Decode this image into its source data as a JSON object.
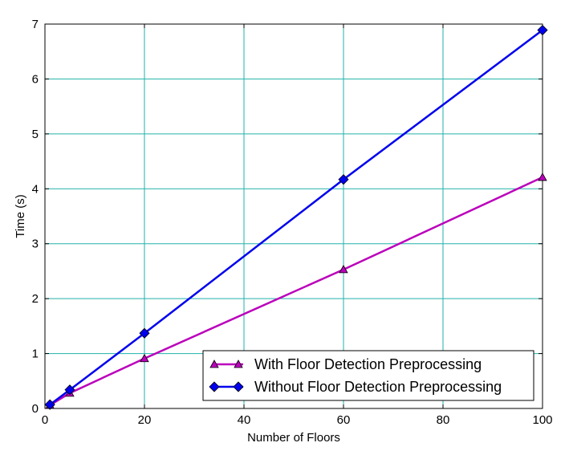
{
  "chart_data": {
    "type": "line",
    "xlabel": "Number of Floors",
    "ylabel": "Time (s)",
    "xlim": [
      0,
      100
    ],
    "ylim": [
      0,
      7
    ],
    "xticks": [
      0,
      20,
      40,
      60,
      80,
      100
    ],
    "yticks": [
      0,
      1,
      2,
      3,
      4,
      5,
      6,
      7
    ],
    "grid": true,
    "legend_position": "lower-right",
    "x": [
      1,
      5,
      20,
      60,
      100
    ],
    "series": [
      {
        "name": "With Floor Detection Preprocessing",
        "values": [
          0.06,
          0.28,
          0.91,
          2.53,
          4.21
        ],
        "color": "#bb00bb",
        "marker": "triangle"
      },
      {
        "name": "Without Floor Detection Preprocessing",
        "values": [
          0.07,
          0.34,
          1.37,
          4.17,
          6.89
        ],
        "color": "#0000ee",
        "marker": "diamond"
      }
    ],
    "grid_color": "#20b2aa"
  }
}
